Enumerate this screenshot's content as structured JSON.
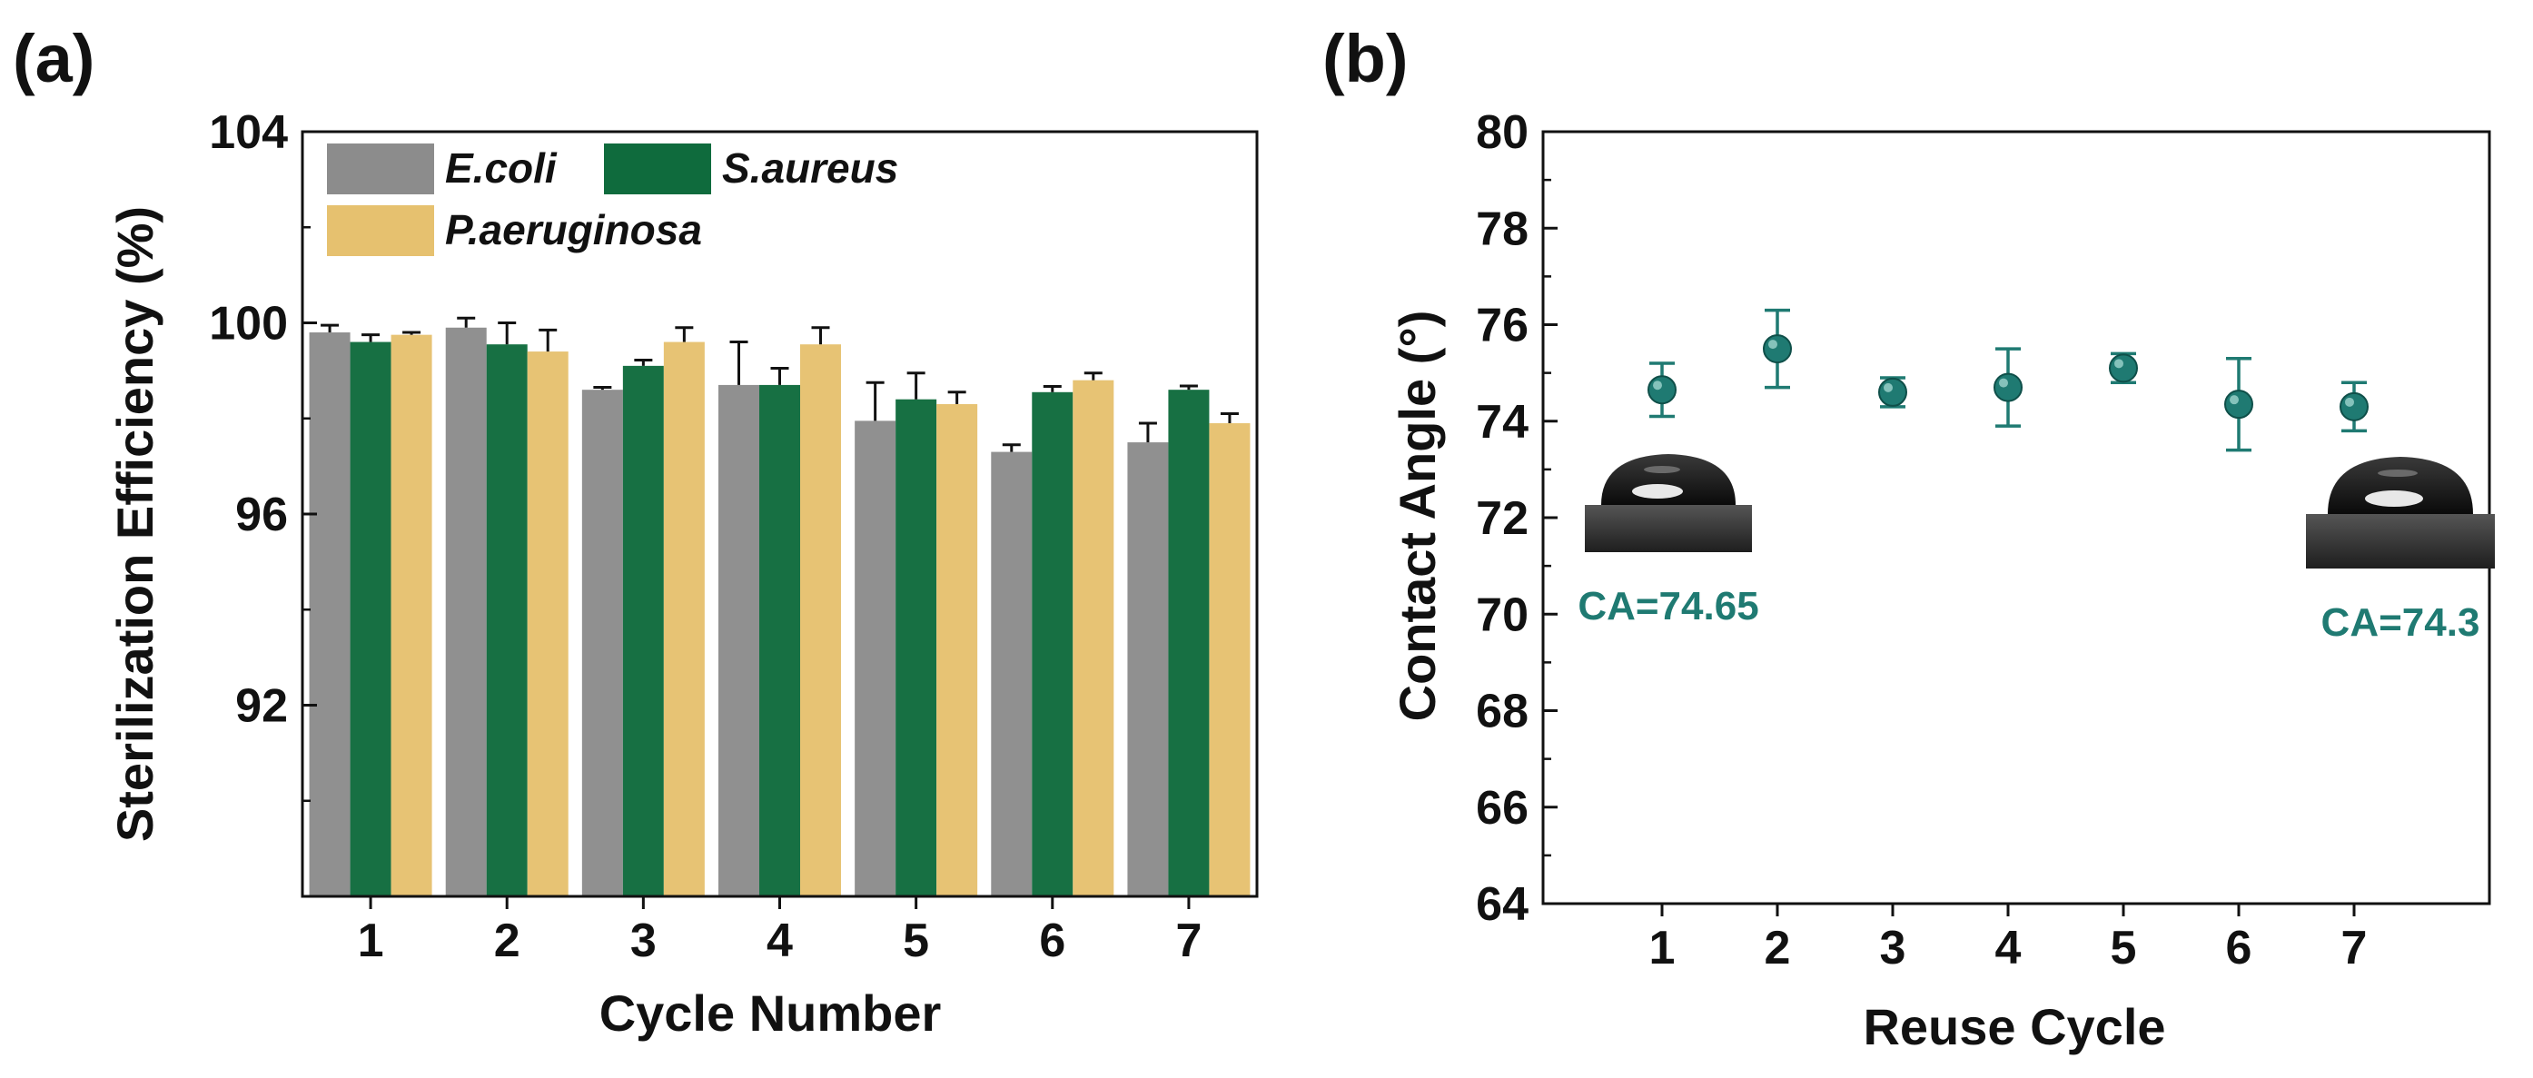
{
  "chart_data": [
    {
      "type": "bar",
      "panel_label": "(a)",
      "title": "",
      "xlabel": "Cycle Number",
      "ylabel": "Sterilization Efficiency (%)",
      "categories": [
        "1",
        "2",
        "3",
        "4",
        "5",
        "6",
        "7"
      ],
      "ylim": [
        88,
        104
      ],
      "yticks": [
        "92",
        "96",
        "100",
        "104"
      ],
      "legend_position": "top-left",
      "series": [
        {
          "name": "E.coli",
          "color": "#8c8c8c",
          "values": [
            99.8,
            99.9,
            98.6,
            98.7,
            97.95,
            97.3,
            97.5
          ],
          "errors": [
            0.15,
            0.2,
            0.05,
            0.9,
            0.8,
            0.15,
            0.4
          ]
        },
        {
          "name": "S.aureus",
          "color": "#0f6b3d",
          "values": [
            99.6,
            99.55,
            99.1,
            98.7,
            98.4,
            98.55,
            98.6
          ],
          "errors": [
            0.15,
            0.45,
            0.12,
            0.35,
            0.55,
            0.12,
            0.08
          ]
        },
        {
          "name": "P.aeruginosa",
          "color": "#e6c16f",
          "values": [
            99.75,
            99.4,
            99.6,
            99.55,
            98.3,
            98.8,
            97.9
          ],
          "errors": [
            0.05,
            0.45,
            0.3,
            0.35,
            0.25,
            0.15,
            0.2
          ]
        }
      ]
    },
    {
      "type": "scatter",
      "panel_label": "(b)",
      "title": "",
      "xlabel": "Reuse Cycle",
      "ylabel": "Contact Angle (°)",
      "categories": [
        "1",
        "2",
        "3",
        "4",
        "5",
        "6",
        "7"
      ],
      "ylim": [
        64,
        80
      ],
      "yticks": [
        "64",
        "66",
        "68",
        "70",
        "72",
        "74",
        "76",
        "78",
        "80"
      ],
      "series": [
        {
          "name": "Contact Angle",
          "color": "#1f7a72",
          "values": [
            74.65,
            75.5,
            74.6,
            74.7,
            75.1,
            74.35,
            74.3
          ],
          "errors": [
            0.55,
            0.8,
            0.3,
            0.8,
            0.3,
            0.95,
            0.5
          ]
        }
      ],
      "annotations": [
        "CA=74.65",
        "CA=74.3"
      ]
    }
  ]
}
